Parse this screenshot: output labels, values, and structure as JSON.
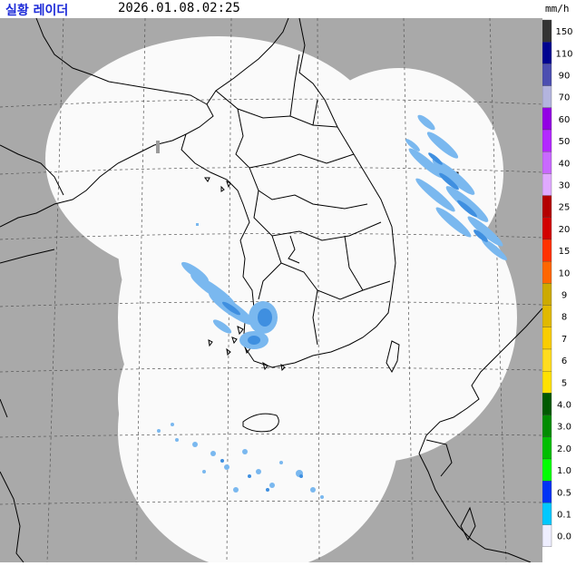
{
  "header": {
    "title": "실황 레이더",
    "timestamp": "2026.01.08.02:25",
    "unit": "mm/h"
  },
  "legend": {
    "items": [
      {
        "label": "150",
        "color": "#333333"
      },
      {
        "label": "110",
        "color": "#000390"
      },
      {
        "label": "90",
        "color": "#4c4eb1"
      },
      {
        "label": "70",
        "color": "#b3b4de"
      },
      {
        "label": "60",
        "color": "#9300e4"
      },
      {
        "label": "50",
        "color": "#b329ff"
      },
      {
        "label": "40",
        "color": "#c969ff"
      },
      {
        "label": "30",
        "color": "#e0a9ff"
      },
      {
        "label": "25",
        "color": "#b40000"
      },
      {
        "label": "20",
        "color": "#d20000"
      },
      {
        "label": "15",
        "color": "#ff3200"
      },
      {
        "label": "10",
        "color": "#ff6600"
      },
      {
        "label": "9",
        "color": "#ccaa00"
      },
      {
        "label": "8",
        "color": "#e0b900"
      },
      {
        "label": "7",
        "color": "#f9cd00"
      },
      {
        "label": "6",
        "color": "#ffdc1f"
      },
      {
        "label": "5",
        "color": "#ffe100"
      },
      {
        "label": "4.0",
        "color": "#005a00"
      },
      {
        "label": "3.0",
        "color": "#008c00"
      },
      {
        "label": "2.0",
        "color": "#00be00"
      },
      {
        "label": "1.0",
        "color": "#00ff00"
      },
      {
        "label": "0.5",
        "color": "#0033f5"
      },
      {
        "label": "0.1",
        "color": "#00c8ff"
      },
      {
        "label": "0.0",
        "color": "#eeeeff"
      }
    ]
  },
  "colors": {
    "outside_coverage": "#a9a9a9",
    "coverage": "#fafafa",
    "coastline": "#000000",
    "grid": "#555555",
    "echo_light": "#7ab8ef",
    "echo_mid": "#3f8fe0"
  }
}
